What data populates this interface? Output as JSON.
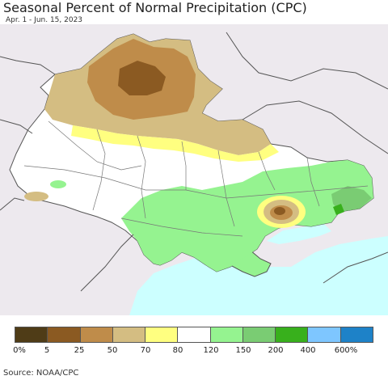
{
  "header": {
    "title": "Seasonal Percent of Normal Precipitation (CPC)",
    "subtitle": "Apr. 1 - Jun. 15, 2023"
  },
  "legend": {
    "colors": [
      "#4f3c17",
      "#8b5a22",
      "#bf8c4a",
      "#d4bd82",
      "#ffff80",
      "#ffffff",
      "#95f390",
      "#7acc73",
      "#38b01c",
      "#7ec6ff",
      "#1e82c8"
    ],
    "labels": [
      "0%",
      "5",
      "25",
      "50",
      "70",
      "80",
      "120",
      "150",
      "200",
      "400",
      "600%"
    ]
  },
  "map": {
    "background_color": "#ede9ee",
    "sea_color": "#ccffff",
    "sea_names": [],
    "region_names": []
  },
  "footer": {
    "source": "Source: NOAA/CPC"
  }
}
